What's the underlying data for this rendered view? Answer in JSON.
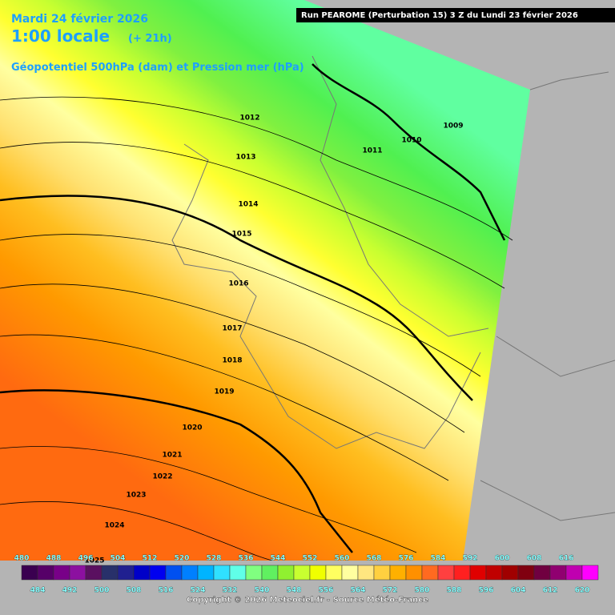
{
  "header": {
    "date": "Mardi 24 février 2026",
    "time": "1:00 locale",
    "lead": "(+ 21h)",
    "run": "Run PEAROME (Perturbation 15) 3 Z du Lundi 23 février 2026",
    "field": "Géopotentiel 500hPa (dam) et Pression mer (hPa)"
  },
  "isobar_labels": [
    1009,
    1010,
    1011,
    1012,
    1013,
    1014,
    1015,
    1016,
    1017,
    1018,
    1019,
    1020,
    1021,
    1022,
    1023,
    1024,
    1025
  ],
  "colorbar": {
    "top_ticks": [
      480,
      488,
      496,
      504,
      512,
      520,
      528,
      536,
      544,
      552,
      560,
      568,
      576,
      584,
      592,
      600,
      608,
      616
    ],
    "bottom_ticks": [
      484,
      492,
      500,
      508,
      516,
      524,
      532,
      540,
      548,
      556,
      564,
      572,
      580,
      588,
      596,
      604,
      612,
      620
    ],
    "colors": [
      "#3a0050",
      "#560068",
      "#780088",
      "#8c10a0",
      "#5a1060",
      "#28306a",
      "#202090",
      "#0000c8",
      "#0000f0",
      "#0050f0",
      "#0080ff",
      "#00b4ff",
      "#30e0ff",
      "#60ffe8",
      "#80ff80",
      "#60f060",
      "#90f030",
      "#c8ff30",
      "#f0ff00",
      "#ffff60",
      "#ffffa0",
      "#ffe680",
      "#ffd040",
      "#ffb000",
      "#ff9000",
      "#ff6a20",
      "#ff4040",
      "#ff2020",
      "#e00000",
      "#c00000",
      "#a00000",
      "#800010",
      "#700040",
      "#900070",
      "#c000b0",
      "#ff00ff"
    ]
  },
  "copyright": "Copyright © 2026 Meteociel.fr - Source Météo-France"
}
